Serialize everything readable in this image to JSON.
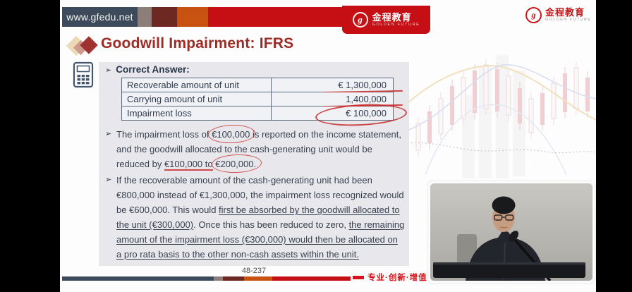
{
  "header": {
    "url": "www.gfedu.net",
    "brand": {
      "name": "金程教育",
      "subtitle": "GOLDEN FUTURE",
      "seal_glyph": "g"
    }
  },
  "slide": {
    "title": "Goodwill Impairment: IFRS",
    "correct_answer": {
      "marker": "➢",
      "label": "Correct Answer:"
    },
    "table": {
      "rows": [
        {
          "label": "Recoverable amount of unit",
          "value": "€ 1,300,000",
          "annotation": "ann-red-underline"
        },
        {
          "label": "Carrying amount of unit",
          "value": "1,400,000",
          "annotation": "ann-red-underline"
        },
        {
          "label": "Impairment loss",
          "value": "€ 100,000",
          "annotation": "ann-red-circle"
        }
      ]
    },
    "bullets": [
      {
        "marker": "➢",
        "lines": [
          [
            {
              "t": "The impairment loss of "
            },
            {
              "t": "€100,000",
              "s": "circled"
            },
            {
              "t": " is reported on the income statement,"
            }
          ],
          [
            {
              "t": "and the goodwill allocated to the cash-generating unit would be"
            }
          ],
          [
            {
              "t": "reduced by "
            },
            {
              "t": "€100,000 to",
              "s": "redline"
            },
            {
              "t": " "
            },
            {
              "t": "€200,000.",
              "s": "circled"
            }
          ]
        ]
      },
      {
        "marker": "➢",
        "lines": [
          [
            {
              "t": "If the recoverable amount of the cash-generating unit had been"
            }
          ],
          [
            {
              "t": "€800,000 instead of €1,300,000, the impairment loss recognized would"
            }
          ],
          [
            {
              "t": "be €600,000. This would "
            },
            {
              "t": "first be absorbed by the goodwill allocated to",
              "s": "ul"
            }
          ],
          [
            {
              "t": "the unit (€300,000)",
              "s": "ul"
            },
            {
              "t": ". Once this has been reduced to zero, "
            },
            {
              "t": "the remaining",
              "s": "ul"
            }
          ],
          [
            {
              "t": "amount of the impairment loss (€300,000) would then be allocated on",
              "s": "ul"
            }
          ],
          [
            {
              "t": "a pro rata basis to the other non-cash assets within the unit.",
              "s": "ul"
            }
          ]
        ]
      }
    ],
    "page_number": "48-237"
  },
  "footer": {
    "slogan": "专业·创新·增值"
  },
  "colors": {
    "accent_red": "#c50f14",
    "title_red": "#9e2a24",
    "slate": "#3c4a5c",
    "orange": "#c85210",
    "maroon": "#6e2822",
    "annotation_red": "#c72b2b",
    "panel_gray": "#e8e8ec"
  }
}
